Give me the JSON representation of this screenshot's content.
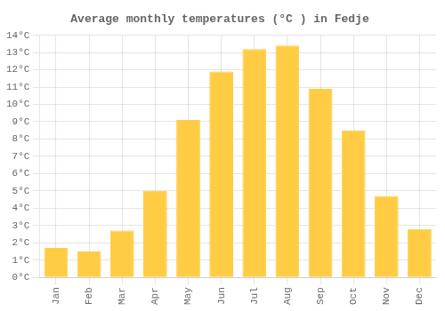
{
  "chart_data": {
    "type": "bar",
    "title": "Average monthly temperatures (°C ) in Fedje",
    "categories": [
      "Jan",
      "Feb",
      "Mar",
      "Apr",
      "May",
      "Jun",
      "Jul",
      "Aug",
      "Sep",
      "Oct",
      "Nov",
      "Dec"
    ],
    "values": [
      1.7,
      1.5,
      2.7,
      5.0,
      9.1,
      11.9,
      13.2,
      13.4,
      10.9,
      8.5,
      4.7,
      2.8
    ],
    "color": "#FFCC44",
    "ylim": [
      0,
      14
    ],
    "yticks": [
      {
        "value": 0,
        "label": "0°C"
      },
      {
        "value": 1,
        "label": "1°C"
      },
      {
        "value": 2,
        "label": "2°C"
      },
      {
        "value": 3,
        "label": "3°C"
      },
      {
        "value": 4,
        "label": "4°C"
      },
      {
        "value": 5,
        "label": "5°C"
      },
      {
        "value": 6,
        "label": "6°C"
      },
      {
        "value": 7,
        "label": "7°C"
      },
      {
        "value": 8,
        "label": "8°C"
      },
      {
        "value": 9,
        "label": "9°C"
      },
      {
        "value": 10,
        "label": "10°C"
      },
      {
        "value": 11,
        "label": "11°C"
      },
      {
        "value": 12,
        "label": "12°C"
      },
      {
        "value": 13,
        "label": "13°C"
      },
      {
        "value": 14,
        "label": "14°C"
      }
    ],
    "grid": true
  }
}
